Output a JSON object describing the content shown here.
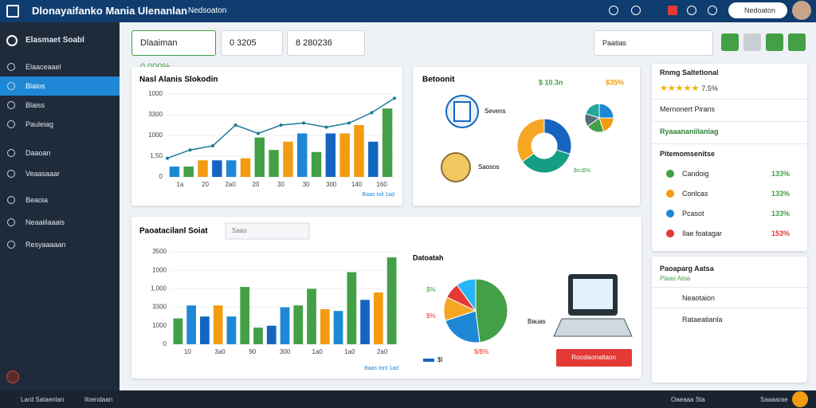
{
  "header": {
    "title": "Dlonayaifanko Mania Ulenanlan",
    "tab": "Nedsoaton",
    "search": "Nedoaton"
  },
  "sidebar": {
    "heading": "Elasmaet Soabl",
    "items": [
      "Elaaceaael",
      "Blaios",
      "Blaiss",
      "Pauleiag",
      "Daaoan",
      "Veaasaaar",
      "Beaoia",
      "Neaaiilaaais",
      "Resyaaaaan"
    ]
  },
  "filters": {
    "metric": "Dlaaiman",
    "metric_value": "0,000%",
    "select1": "0 3205",
    "select2": "8 280236",
    "period": "Paatias"
  },
  "sales_chart": {
    "title": "Nasl Alanis Slokodin",
    "yticks": [
      {
        "value": 0,
        "label": "0"
      },
      {
        "value": 1,
        "label": "1,50"
      },
      {
        "value": 2,
        "label": "1000"
      },
      {
        "value": 3,
        "label": "3300"
      },
      {
        "value": 4,
        "label": "1000"
      }
    ],
    "ylim": [
      0,
      4
    ],
    "categories": [
      "1a",
      "20",
      "2a0",
      "20",
      "30",
      "30",
      "300",
      "140",
      "160"
    ],
    "bars": [
      0.5,
      0.5,
      0.8,
      0.8,
      0.8,
      0.9,
      1.9,
      1.3,
      1.7,
      2.1,
      1.2,
      2.1,
      2.1,
      2.5,
      1.7,
      3.3
    ],
    "bar_colors": [
      "#1e88d6",
      "#43a047",
      "#f39c12",
      "#1565c0",
      "#1e88d6",
      "#f39c12",
      "#43a047",
      "#43a047",
      "#f39c12",
      "#1e88d6",
      "#43a047",
      "#1565c0",
      "#f39c12",
      "#f39c12",
      "#1565c0",
      "#43a047"
    ],
    "line": [
      0.9,
      1.3,
      1.5,
      2.5,
      2.1,
      2.5,
      2.6,
      2.4,
      2.6,
      3.1,
      3.8
    ],
    "line_color": "#1a7a9a",
    "note": "Baas toil 1ad"
  },
  "budget": {
    "title": "Betoonit",
    "total": "$ 10.3n",
    "change": "$35%",
    "doc_label": "Sevens",
    "coin_label": "Saosos",
    "donut": [
      30,
      35,
      35
    ],
    "donut_colors": [
      "#1565c0",
      "#169e84",
      "#f5a623"
    ],
    "pie": [
      25,
      20,
      20,
      15,
      20
    ],
    "pie_colors": [
      "#1e88d6",
      "#f39c12",
      "#43a047",
      "#546e7a",
      "#26a69a"
    ],
    "pie_label": "$ss$%"
  },
  "ratings": {
    "title": "Rnmg Saltetional",
    "rating": "7.5%",
    "rows": [
      "Mernonert Pirans",
      "Ryaaananiilaniag"
    ],
    "section": "Pitemomsenitse",
    "items": [
      {
        "label": "Candoig",
        "value": "133%"
      },
      {
        "label": "Conlcas",
        "value": "133%"
      },
      {
        "label": "Pcasot",
        "value": "133%"
      },
      {
        "label": "Ilae foatagar",
        "value": "153%"
      }
    ]
  },
  "products": {
    "title": "Paoatacilanl Soiat",
    "search": "Saao",
    "yticks": [
      {
        "value": 0,
        "label": "0"
      },
      {
        "value": 1,
        "label": "1000"
      },
      {
        "value": 2,
        "label": "3300"
      },
      {
        "value": 3,
        "label": "1,000"
      },
      {
        "value": 4,
        "label": "1000"
      },
      {
        "value": 5,
        "label": "3500"
      }
    ],
    "ylim": [
      0,
      5
    ],
    "categories": [
      "10",
      "3a0",
      "90",
      "300",
      "1a0",
      "1a0",
      "2a0"
    ],
    "bars": [
      1.4,
      2.1,
      1.5,
      2.1,
      1.5,
      3.1,
      0.9,
      1.0,
      2.0,
      2.1,
      3.0,
      1.9,
      1.8,
      3.9,
      2.4,
      2.8,
      4.7
    ],
    "bar_colors": [
      "#43a047",
      "#1e88d6",
      "#1565c0",
      "#f39c12",
      "#1e88d6",
      "#43a047",
      "#43a047",
      "#1565c0",
      "#1e88d6",
      "#43a047",
      "#43a047",
      "#f39c12",
      "#1e88d6",
      "#43a047",
      "#1565c0",
      "#f39c12",
      "#43a047"
    ],
    "note": "Baas tonl 1ad"
  },
  "distribution": {
    "title": "Datoatah",
    "pie": [
      48,
      22,
      12,
      8,
      10
    ],
    "pie_colors": [
      "#43a047",
      "#1e88d6",
      "#f5a623",
      "#e53935",
      "#29b6f6"
    ],
    "labels": [
      "$%",
      "$%",
      "$/$%"
    ],
    "side": "Bauas",
    "legend": "$l",
    "button": "Rooslaonaltaon"
  },
  "panel": {
    "title": "Paoaparg Aatsa",
    "subtitle": "Plaas Atoa",
    "rows": [
      "Neaotaion",
      "Rataeatianla"
    ]
  },
  "footer": {
    "left": [
      "Lard Sataenlan",
      "Iloendaan"
    ],
    "right": [
      "Oaeaaa Sta",
      "Saaaarae"
    ]
  }
}
